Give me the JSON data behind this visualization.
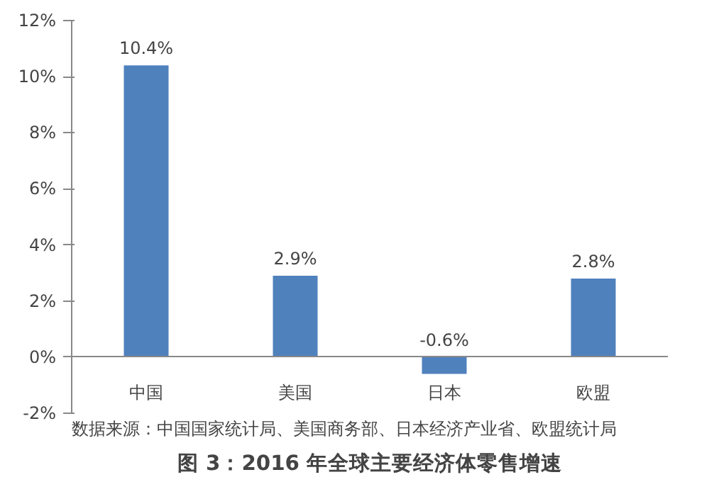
{
  "chart_data": {
    "type": "bar",
    "title": "图 3：2016 年全球主要经济体零售增速",
    "categories": [
      "中国",
      "美国",
      "日本",
      "欧盟"
    ],
    "values": [
      10.4,
      2.9,
      -0.6,
      2.8
    ],
    "color": "#4f81bd",
    "value_labels": [
      "10.4%",
      "2.9%",
      "-0.6%",
      "2.8%"
    ],
    "ylim": [
      -2,
      12
    ],
    "yticks": [
      {
        "value": -2,
        "label": "-2%"
      },
      {
        "value": 0,
        "label": "0%"
      },
      {
        "value": 2,
        "label": "2%"
      },
      {
        "value": 4,
        "label": "4%"
      },
      {
        "value": 6,
        "label": "6%"
      },
      {
        "value": 8,
        "label": "8%"
      },
      {
        "value": 10,
        "label": "10%"
      },
      {
        "value": 12,
        "label": "12%"
      }
    ],
    "grid": false,
    "annotations": [
      "数据来源：中国国家统计局、美国商务部、日本经济产业省、欧盟统计局"
    ]
  }
}
